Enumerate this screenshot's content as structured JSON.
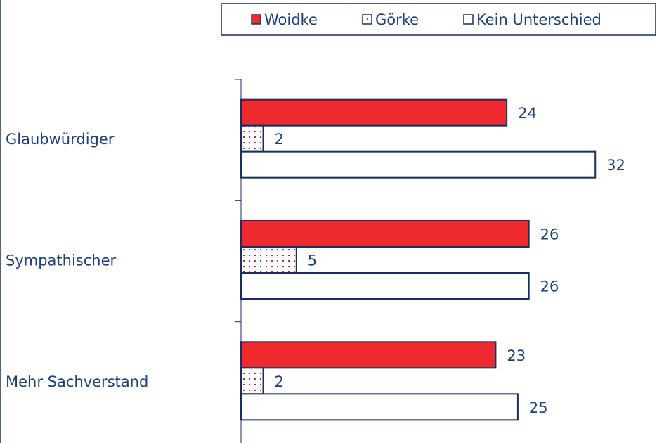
{
  "chart_data": {
    "type": "hbar",
    "categories": [
      "Glaubwürdiger",
      "Sympathischer",
      "Mehr Sachverstand"
    ],
    "series": [
      {
        "name": "Woidke",
        "color": "#ee2a2e",
        "values": [
          24,
          26,
          23
        ]
      },
      {
        "name": "Görke",
        "color": "#b8294a",
        "pattern": "dotted",
        "values": [
          2,
          5,
          2
        ]
      },
      {
        "name": "Kein Unterschied",
        "color": "#ffffff",
        "values": [
          32,
          26,
          25
        ]
      }
    ],
    "xlim": [
      0,
      37
    ],
    "legend": "top"
  }
}
